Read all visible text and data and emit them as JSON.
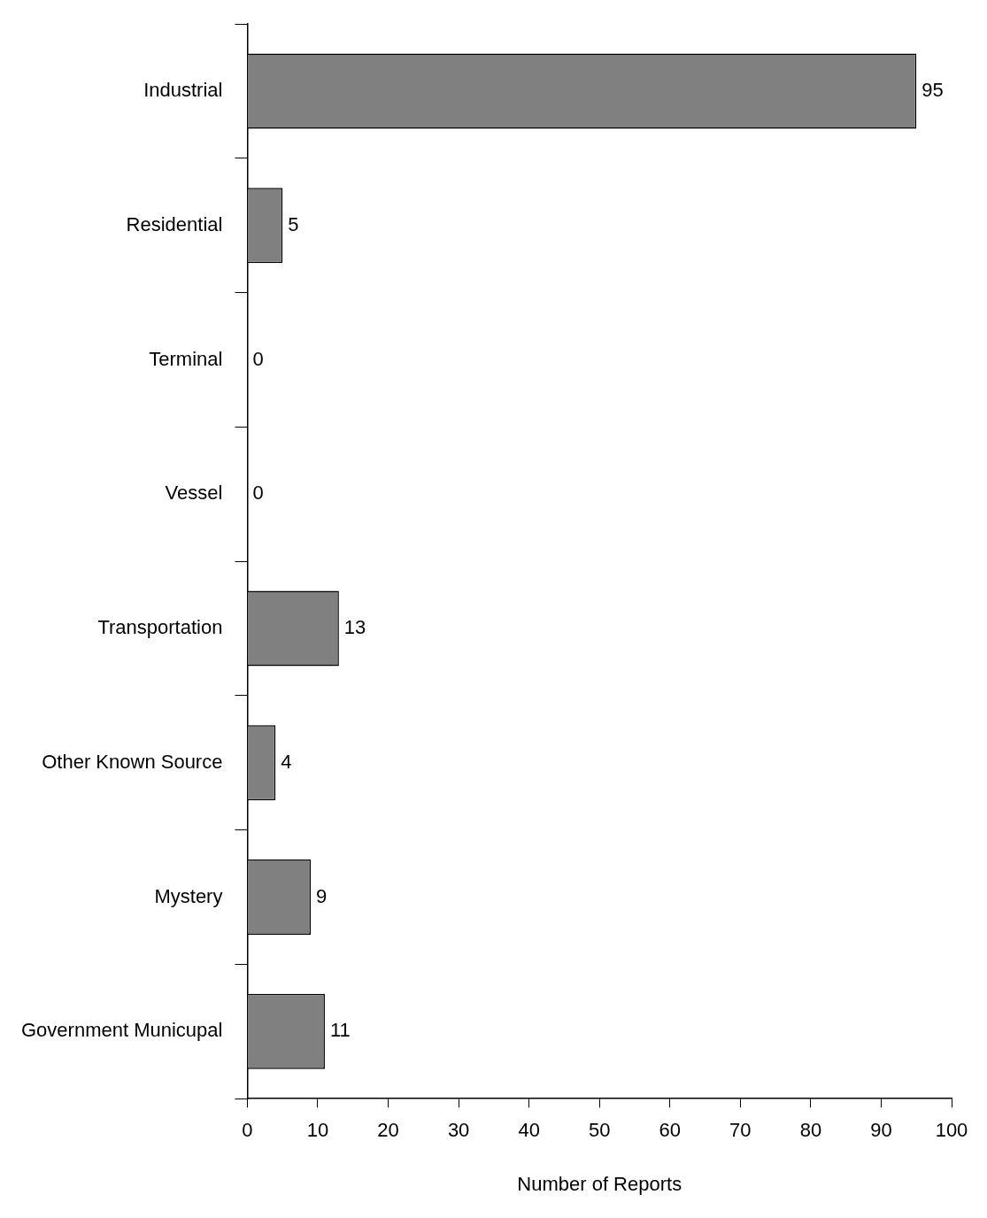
{
  "chart_data": {
    "type": "bar",
    "orientation": "horizontal",
    "xlabel": "Number of Reports",
    "categories": [
      "Industrial",
      "Residential",
      "Terminal",
      "Vessel",
      "Transportation",
      "Other Known Source",
      "Mystery",
      "Government Municupal"
    ],
    "values": [
      95,
      5,
      0,
      0,
      13,
      4,
      9,
      11
    ],
    "color": "#808080",
    "xlim": [
      0,
      100
    ],
    "xticks": [
      0,
      10,
      20,
      30,
      40,
      50,
      60,
      70,
      80,
      90,
      100
    ],
    "data_labels": true
  }
}
